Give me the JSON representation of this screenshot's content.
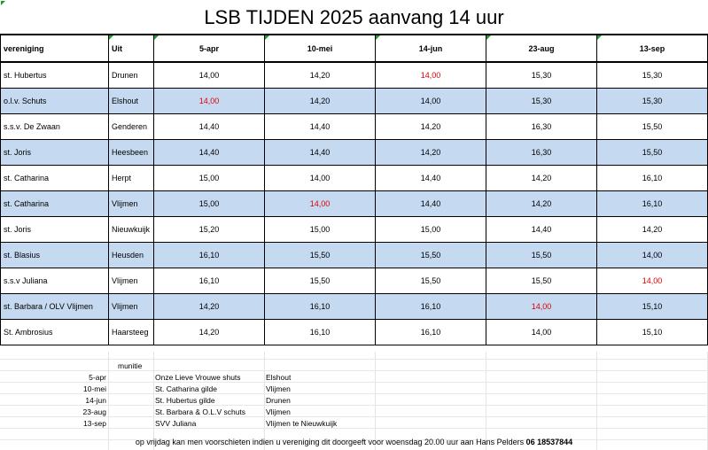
{
  "title": "LSB TIJDEN 2025 aanvang 14 uur",
  "headers": {
    "club": "vereniging",
    "away": "Uit",
    "dates": [
      "5-apr",
      "10-mei",
      "14-jun",
      "23-aug",
      "13-sep"
    ]
  },
  "rows": [
    {
      "club": "st. Hubertus",
      "away": "Drunen",
      "times": [
        "14,00",
        "14,20",
        "14,00",
        "15,30",
        "15,30"
      ],
      "red": [
        false,
        false,
        true,
        false,
        false
      ],
      "shade": "white"
    },
    {
      "club": "o.l.v. Schuts",
      "away": "Elshout",
      "times": [
        "14,00",
        "14,20",
        "14,00",
        "15,30",
        "15,30"
      ],
      "red": [
        true,
        false,
        false,
        false,
        false
      ],
      "shade": "blue"
    },
    {
      "club": "s.s.v. De Zwaan",
      "away": "Genderen",
      "times": [
        "14,40",
        "14,40",
        "14,20",
        "16,30",
        "15,50"
      ],
      "red": [
        false,
        false,
        false,
        false,
        false
      ],
      "shade": "white"
    },
    {
      "club": "st. Joris",
      "away": "Heesbeen",
      "times": [
        "14,40",
        "14,40",
        "14,20",
        "16,30",
        "15,50"
      ],
      "red": [
        false,
        false,
        false,
        false,
        false
      ],
      "shade": "blue"
    },
    {
      "club": "st. Catharina",
      "away": "Herpt",
      "times": [
        "15,00",
        "14,00",
        "14,40",
        "14,20",
        "16,10"
      ],
      "red": [
        false,
        false,
        false,
        false,
        false
      ],
      "shade": "white"
    },
    {
      "club": "st. Catharina",
      "away": "Vlijmen",
      "times": [
        "15,00",
        "14,00",
        "14,40",
        "14,20",
        "16,10"
      ],
      "red": [
        false,
        true,
        false,
        false,
        false
      ],
      "shade": "blue"
    },
    {
      "club": "st. Joris",
      "away": "Nieuwkuijk",
      "times": [
        "15,20",
        "15,00",
        "15,00",
        "14,40",
        "14,20"
      ],
      "red": [
        false,
        false,
        false,
        false,
        false
      ],
      "shade": "white"
    },
    {
      "club": "st. Blasius",
      "away": "Heusden",
      "times": [
        "16,10",
        "15,50",
        "15,50",
        "15,50",
        "14,00"
      ],
      "red": [
        false,
        false,
        false,
        false,
        false
      ],
      "shade": "blue"
    },
    {
      "club": "s.s.v Juliana",
      "away": "Vlijmen",
      "times": [
        "16,10",
        "15,50",
        "15,50",
        "15,50",
        "14,00"
      ],
      "red": [
        false,
        false,
        false,
        false,
        true
      ],
      "shade": "white"
    },
    {
      "club": "st. Barbara / OLV Vlijmen",
      "away": "Vlijmen",
      "times": [
        "14,20",
        "16,10",
        "16,10",
        "14,00",
        "15,10"
      ],
      "red": [
        false,
        false,
        false,
        true,
        false
      ],
      "shade": "blue"
    },
    {
      "club": "St. Ambrosius",
      "away": "Haarsteeg",
      "times": [
        "14,20",
        "16,10",
        "16,10",
        "14,00",
        "15,10"
      ],
      "red": [
        false,
        false,
        false,
        false,
        false
      ],
      "shade": "white"
    }
  ],
  "munitie": {
    "label": "munitie",
    "items": [
      {
        "date": "5-apr",
        "club": "Onze Lieve Vrouwe shuts",
        "place": "Elshout"
      },
      {
        "date": "10-mei",
        "club": "St. Catharina gilde",
        "place": "Vlijmen"
      },
      {
        "date": "14-jun",
        "club": "St. Hubertus gilde",
        "place": "Drunen"
      },
      {
        "date": "23-aug",
        "club": "St. Barbara & O.L.V schuts",
        "place": "Vlijmen"
      },
      {
        "date": "13-sep",
        "club": "SVV Juliana",
        "place": "Vlijmen te Nieuwkuijk"
      }
    ]
  },
  "footer": {
    "text": "op vrijdag kan men voorschieten indien u vereniging dit doorgeeft voor woensdag 20.00 uur aan Hans Pelders ",
    "phone": "06 18537844"
  },
  "colors": {
    "row_blue": "#c5d9f1",
    "red_text": "#e00000",
    "corner_marker": "#1a9c2f"
  }
}
